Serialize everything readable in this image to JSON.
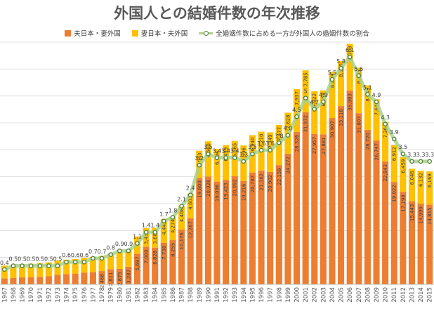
{
  "colors": {
    "husband_jp": "#ed7d31",
    "wife_jp": "#ffc000",
    "ratio_line": "#a9d18e",
    "ratio_marker": "#548235",
    "grid": "#d9d9d9",
    "title": "#595959"
  },
  "chart_data": {
    "type": "bar",
    "stacked": true,
    "title": "外国人との結婚件数の年次推移",
    "legend_position": "top",
    "grid": true,
    "categories": [
      "1967",
      "1968",
      "1969",
      "1970",
      "1971",
      "1972",
      "1973",
      "1974",
      "1975",
      "1976",
      "1977",
      "1978",
      "1979",
      "1980",
      "1981",
      "1982",
      "1983",
      "1984",
      "1985",
      "1986",
      "1987",
      "1988",
      "1989",
      "1990",
      "1991",
      "1992",
      "1993",
      "1994",
      "1995",
      "1996",
      "1997",
      "1998",
      "1999",
      "2000",
      "2001",
      "2002",
      "2003",
      "2004",
      "2005",
      "2006",
      "2007",
      "2008",
      "2009",
      "2010",
      "2011",
      "2012",
      "2013",
      "2014",
      "2015"
    ],
    "series": [
      {
        "name": "夫日本・妻外国",
        "values": [
          1100,
          1200,
          1300,
          1350,
          1400,
          1500,
          1800,
          1900,
          2000,
          2200,
          2300,
          2468,
          2811,
          2875,
          3287,
          5697,
          7000,
          6828,
          7738,
          8255,
          10176,
          12267,
          19800,
          20026,
          19096,
          19423,
          20092,
          19216,
          20787,
          21162,
          20902,
          22159,
          24272,
          28326,
          31972,
          27957,
          27881,
          30907,
          33116,
          35993,
          31807,
          28720,
          26747,
          22843,
          19022,
          17198,
          15443,
          14999,
          14815
        ],
        "labels": [
          "",
          "",
          "",
          "",
          "",
          "",
          "",
          "",
          "",
          "",
          "",
          "2,468",
          "2,811",
          "2,875",
          "3,287",
          "5,697",
          "7,000",
          "6,828",
          "7,738",
          "8,255",
          "10,176",
          "12,267",
          "19,800",
          "20,026",
          "19,096",
          "19,423",
          "20,092",
          "19,216",
          "20,787",
          "21,162",
          "20,902",
          "22,159",
          "24,272",
          "28,326",
          "31,972",
          "27,957",
          "27,881",
          "30,907",
          "33,116",
          "35,993",
          "31,807",
          "28,720",
          "26,747",
          "22,843",
          "19,022",
          "17,198",
          "15,443",
          "14,999",
          "14,815"
        ]
      },
      {
        "name": "妻日本・夫外国",
        "values": [
          2400,
          2400,
          2450,
          2500,
          2550,
          2600,
          2650,
          2700,
          2700,
          2750,
          2800,
          2850,
          2900,
          3000,
          3100,
          3200,
          3451,
          3680,
          4443,
          4274,
          4408,
          4605,
          5043,
          6560,
          6094,
          6439,
          6565,
          6596,
          6940,
          7210,
          7349,
          7477,
          7628,
          7937,
          7785,
          7922,
          8158,
          8604,
          8365,
          8708,
          8465,
          8249,
          7646,
          7364,
          6912,
          6459,
          6046,
          6132,
          6169
        ],
        "labels": [
          "",
          "",
          "",
          "",
          "",
          "",
          "",
          "",
          "",
          "",
          "",
          "",
          "",
          "",
          "",
          "",
          "3,451",
          "3,680",
          "4,443",
          "4,274",
          "4,408",
          "4,605",
          "5,043",
          "6,560",
          "6,094",
          "6,439",
          "6,565",
          "6,596",
          "6,940",
          "7,210",
          "7,349",
          "7,477",
          "7,628",
          "7,937",
          "7,785",
          "7,922",
          "8,158",
          "8,604",
          "8,365",
          "8,708",
          "8,465",
          "8,249",
          "7,646",
          "7,364",
          "6,912",
          "6,459",
          "6,046",
          "6,132",
          "6,169"
        ]
      },
      {
        "name": "全婚姻件数に占める一方が外国人の婚姻件数の割合",
        "type": "line",
        "values": [
          0.4,
          0.5,
          0.5,
          0.5,
          0.5,
          0.5,
          0.5,
          0.6,
          0.6,
          0.6,
          0.7,
          0.7,
          0.8,
          0.9,
          0.9,
          1.1,
          1.4,
          1.4,
          1.7,
          1.8,
          2.1,
          2.4,
          3.2,
          3.5,
          3.4,
          3.4,
          3.4,
          3.3,
          3.5,
          3.6,
          3.6,
          3.8,
          4.0,
          4.5,
          5.0,
          4.7,
          4.9,
          5.5,
          5.8,
          6.1,
          5.6,
          5.1,
          4.9,
          4.3,
          3.9,
          3.5,
          3.3,
          3.3,
          3.3
        ],
        "labels": [
          "0.4",
          "0.5",
          "0.5",
          "0.5",
          "0.5",
          "0.5",
          "0.5",
          "0.6",
          "0.6",
          "0.6",
          "0.7",
          "0.7",
          "0.8",
          "0.9",
          "0.9",
          "1.1",
          "1.4",
          "1.4",
          "1.7",
          "1.8",
          "2.1",
          "2.4",
          "3.2",
          "3.5",
          "3.4",
          "3.4",
          "3.4",
          "3.3",
          "3.5",
          "3.6",
          "3.6",
          "3.8",
          "4.0",
          "4.5",
          "5",
          "4.7",
          "4.9",
          "5.5",
          "5.8",
          "6.1",
          "5.6",
          "5.1",
          "4.9",
          "4.3",
          "3.9",
          "3.5",
          "3.3",
          "3.3",
          "3.3"
        ]
      }
    ],
    "ylim": [
      0,
      45000
    ],
    "y2lim": [
      0,
      6.5
    ]
  }
}
